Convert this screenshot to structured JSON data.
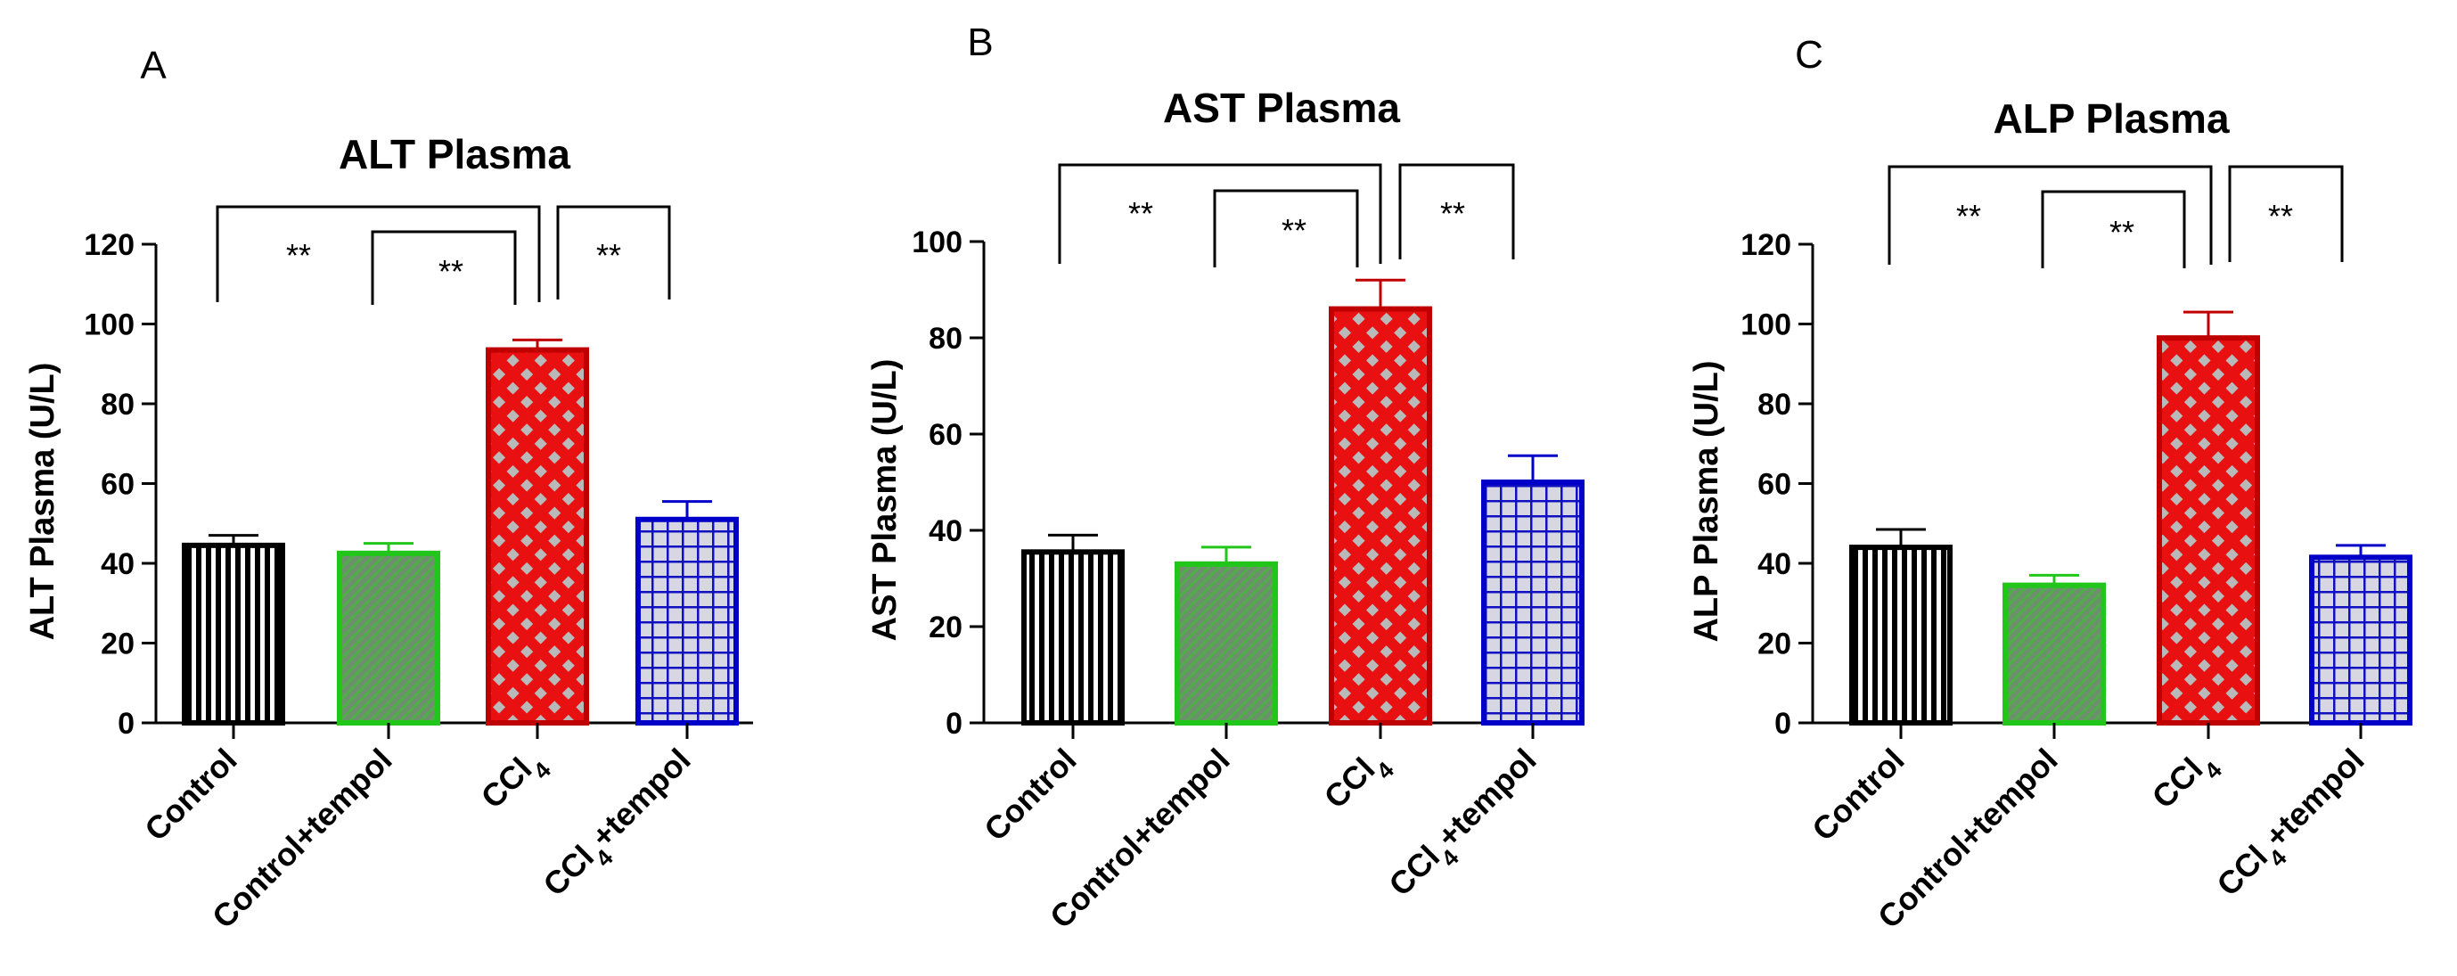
{
  "colors": {
    "axis": "#000000",
    "control": "#000000",
    "control_tempol": "#22C61A",
    "control_tempol_fill": "#6E8F6E",
    "ccl4": "#C00000",
    "ccl4_fill": "#E81010",
    "ccl4_tempol": "#0000C8",
    "ccl4_tempol_fill": "#D7D7E3"
  },
  "categories": [
    {
      "text": "Control",
      "sub": "",
      "tail": ""
    },
    {
      "text": "Control+tempol",
      "sub": "",
      "tail": ""
    },
    {
      "text": "CCl",
      "sub": "4",
      "tail": ""
    },
    {
      "text": "CCl",
      "sub": "4",
      "tail": "+tempol"
    }
  ],
  "chart_data": [
    {
      "type": "bar",
      "panel": "A",
      "title": "ALT Plasma",
      "ylabel": "ALT Plasma (U/L)",
      "xlabel": "",
      "ylim": [
        0,
        120
      ],
      "yticks": [
        0,
        20,
        40,
        60,
        80,
        100,
        120
      ],
      "categories": [
        "Control",
        "Control+tempol",
        "CCl4",
        "CCl4+tempol"
      ],
      "values": [
        44.5,
        42.5,
        93.5,
        51
      ],
      "errors": [
        2.5,
        2.5,
        2.5,
        4.5
      ],
      "significance": [
        {
          "from": 0,
          "to": 2,
          "label": "**"
        },
        {
          "from": 1,
          "to": 2,
          "label": "**"
        },
        {
          "from": 2,
          "to": 3,
          "label": "**"
        }
      ]
    },
    {
      "type": "bar",
      "panel": "B",
      "title": "AST Plasma",
      "ylabel": "AST Plasma (U/L)",
      "xlabel": "",
      "ylim": [
        0,
        100
      ],
      "yticks": [
        0,
        20,
        40,
        60,
        80,
        100
      ],
      "categories": [
        "Control",
        "Control+tempol",
        "CCl4",
        "CCl4+tempol"
      ],
      "values": [
        35.5,
        33,
        86,
        50
      ],
      "errors": [
        3.5,
        3.5,
        6,
        5.5
      ],
      "significance": [
        {
          "from": 0,
          "to": 2,
          "label": "**"
        },
        {
          "from": 1,
          "to": 2,
          "label": "**"
        },
        {
          "from": 2,
          "to": 3,
          "label": "**"
        }
      ]
    },
    {
      "type": "bar",
      "panel": "C",
      "title": "ALP Plasma",
      "ylabel": "ALP Plasma (U/L)",
      "xlabel": "",
      "ylim": [
        0,
        120
      ],
      "yticks": [
        0,
        20,
        40,
        60,
        80,
        100,
        120
      ],
      "categories": [
        "Control",
        "Control+tempol",
        "CCl4",
        "CCl4+tempol"
      ],
      "values": [
        44,
        34.5,
        96.5,
        41.5
      ],
      "errors": [
        4.5,
        2.5,
        6.5,
        3
      ],
      "significance": [
        {
          "from": 0,
          "to": 2,
          "label": "**"
        },
        {
          "from": 1,
          "to": 2,
          "label": "**"
        },
        {
          "from": 2,
          "to": 3,
          "label": "**"
        }
      ]
    }
  ]
}
